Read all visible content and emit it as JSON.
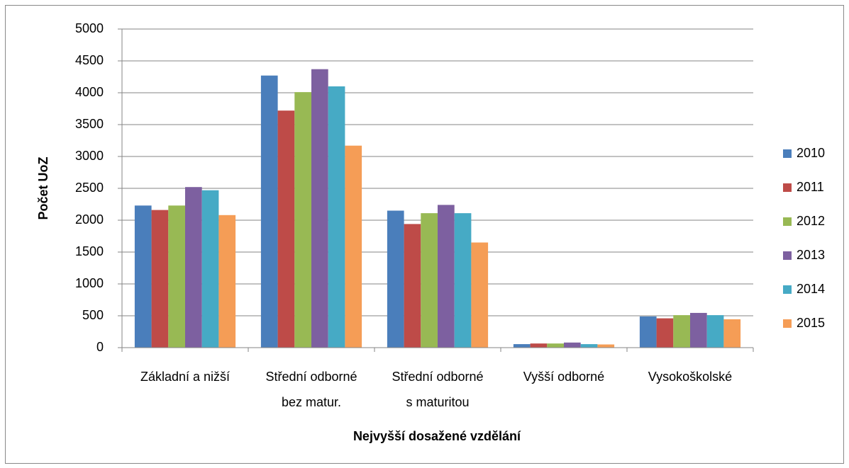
{
  "chart_data": {
    "type": "bar",
    "xlabel": "Nejvyšší dosažené vzdělání",
    "ylabel": "Počet UoZ",
    "categories": [
      "Základní a nižší",
      "Střední odborné\nbez matur.",
      "Střední odborné\ns maturitou",
      "Vyšší odborné",
      "Vysokoškolské"
    ],
    "series": [
      {
        "name": "2010",
        "color": "#4a7ebb",
        "values": [
          2230,
          4270,
          2150,
          55,
          490
        ]
      },
      {
        "name": "2011",
        "color": "#be4b48",
        "values": [
          2160,
          3720,
          1940,
          65,
          460
        ]
      },
      {
        "name": "2012",
        "color": "#98b954",
        "values": [
          2230,
          4010,
          2110,
          65,
          510
        ]
      },
      {
        "name": "2013",
        "color": "#7d60a0",
        "values": [
          2520,
          4370,
          2240,
          80,
          545
        ]
      },
      {
        "name": "2014",
        "color": "#46aac5",
        "values": [
          2470,
          4100,
          2110,
          55,
          510
        ]
      },
      {
        "name": "2015",
        "color": "#f59d56",
        "values": [
          2080,
          3170,
          1650,
          50,
          445
        ]
      }
    ],
    "ylim": [
      0,
      5000
    ],
    "yticks": [
      0,
      500,
      1000,
      1500,
      2000,
      2500,
      3000,
      3500,
      4000,
      4500,
      5000
    ],
    "grid": true,
    "legend": "right"
  }
}
